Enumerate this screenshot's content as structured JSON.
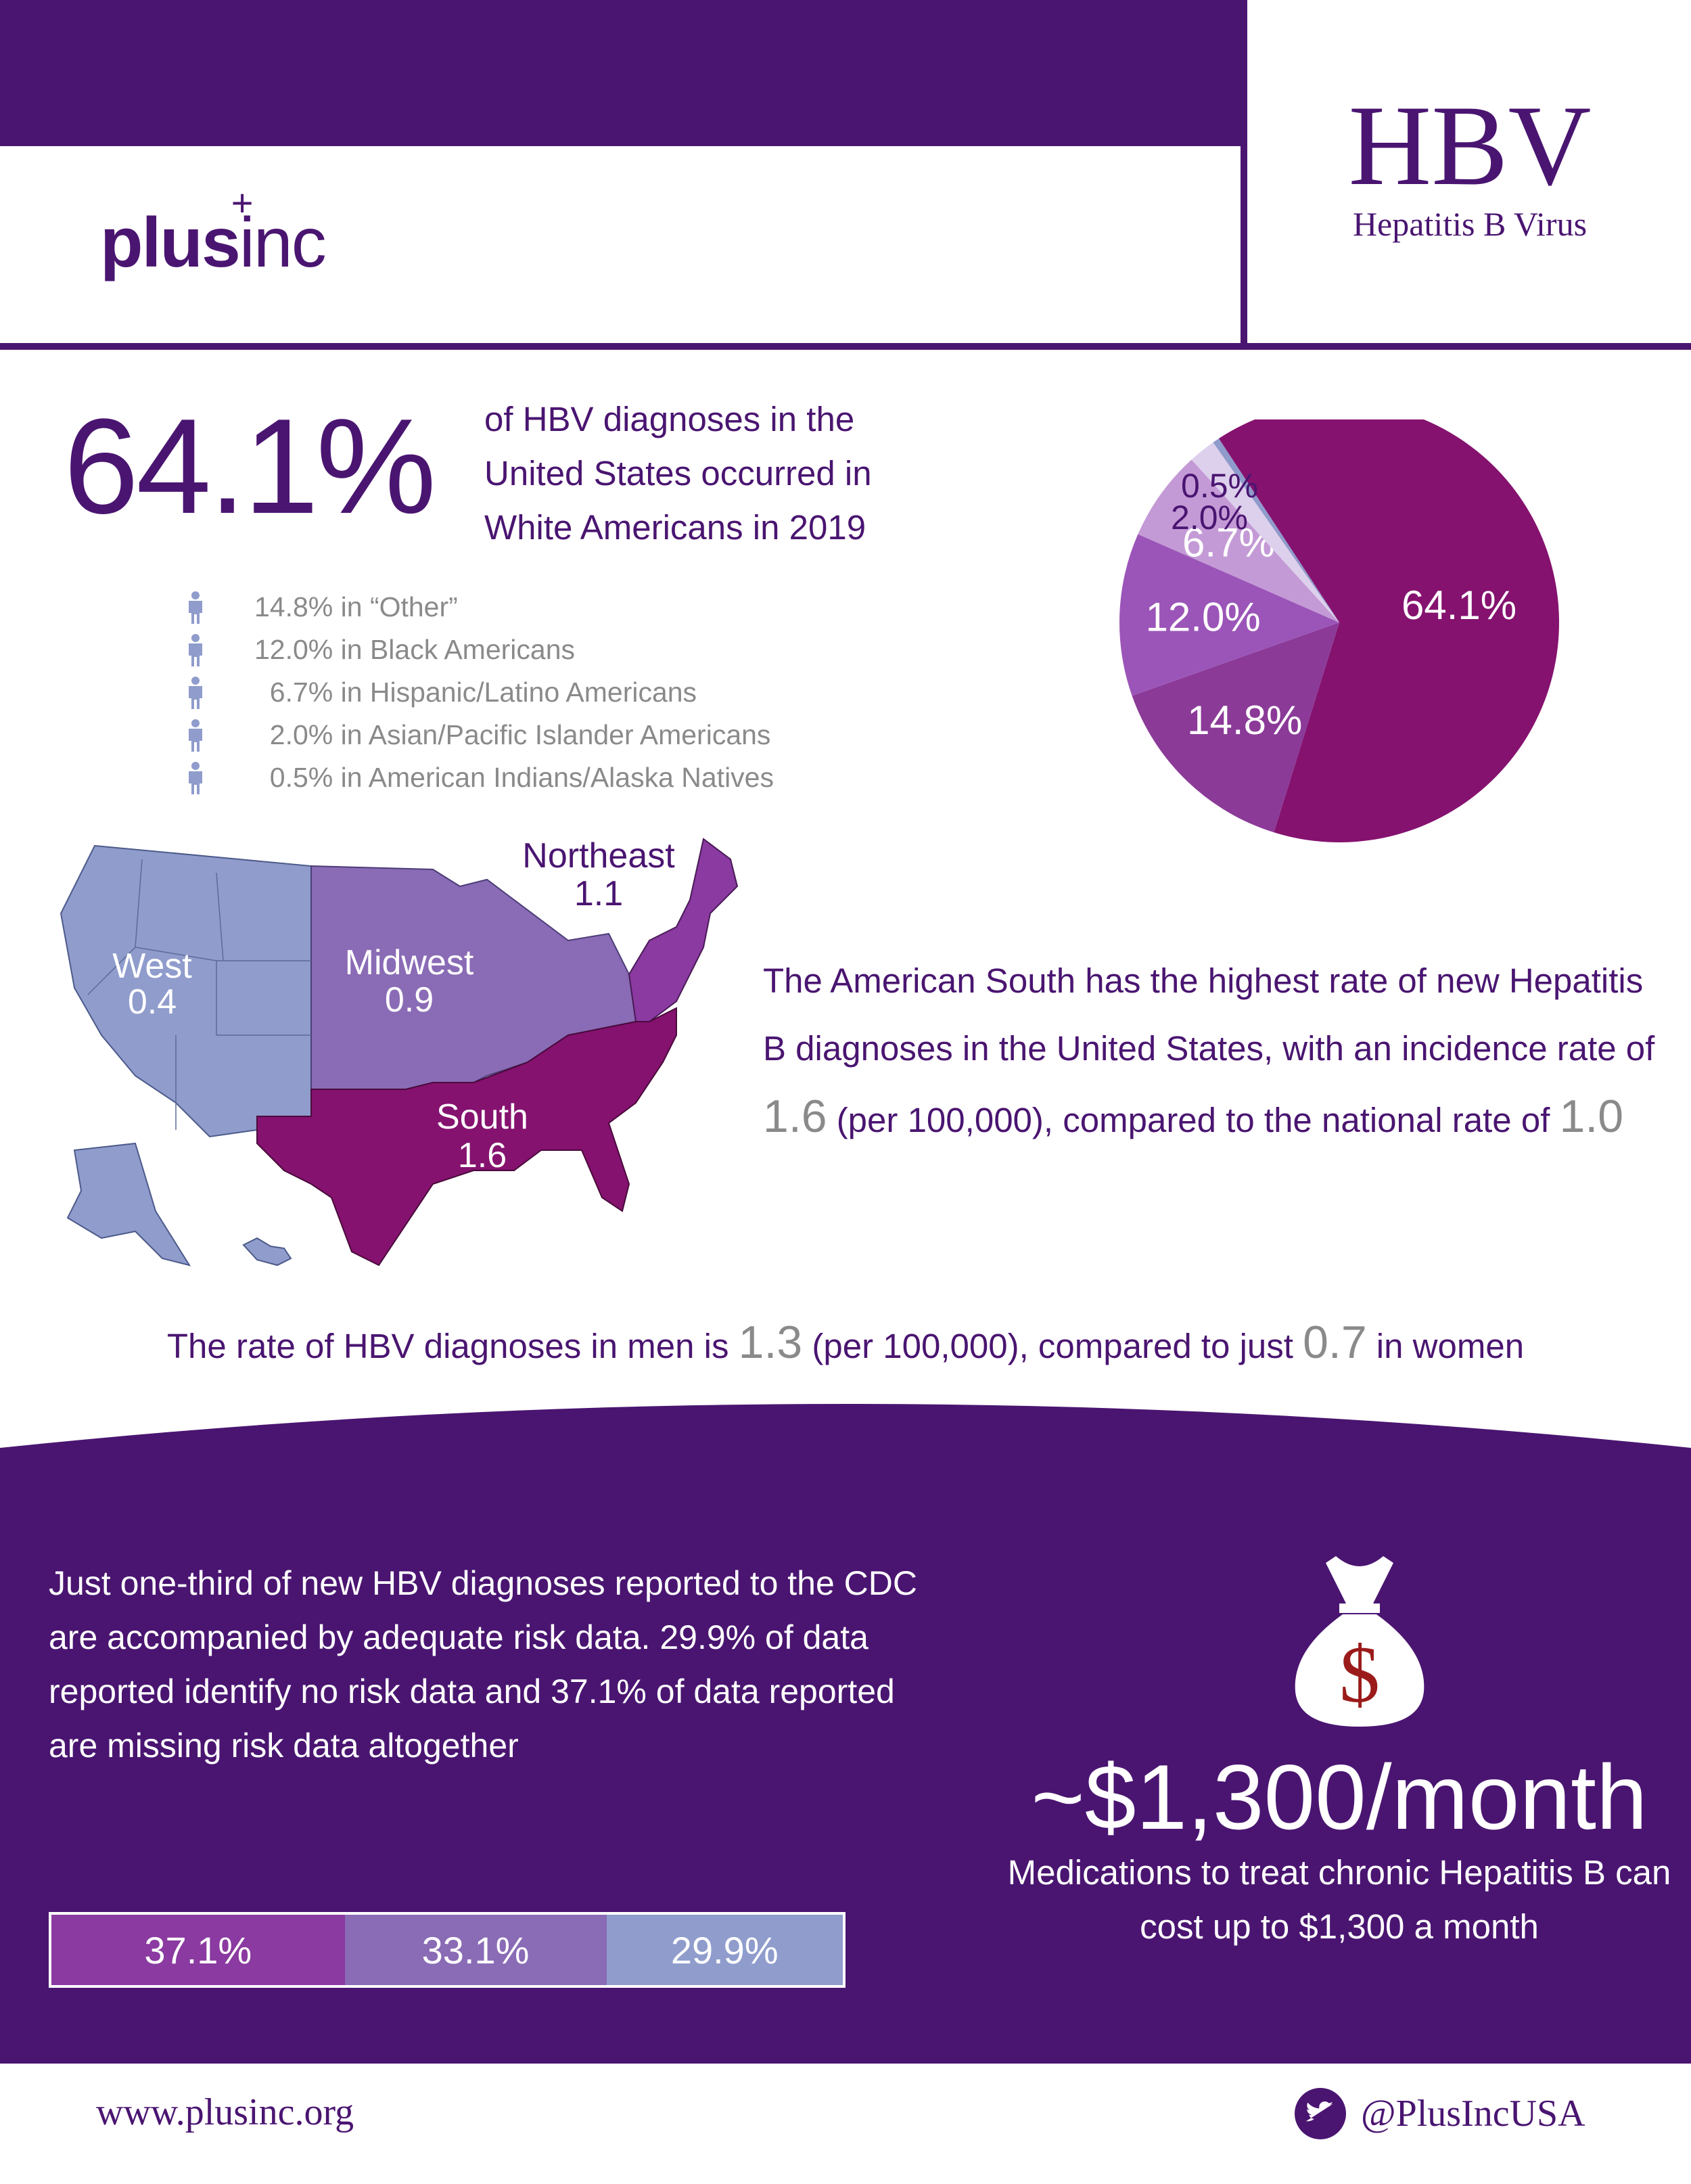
{
  "header": {
    "logo_main": "plus",
    "logo_suffix": "inc",
    "logo_plus": "+",
    "title": "HBV",
    "subtitle": "Hepatitis B Virus"
  },
  "headline": {
    "percent": "64.1%",
    "description": "of HBV diagnoses in the United States occurred in White Americans in 2019"
  },
  "breakdown": [
    {
      "icon": "person-icon",
      "text": "14.8% in “Other”"
    },
    {
      "icon": "person-icon",
      "text": "12.0% in Black Americans"
    },
    {
      "icon": "person-icon",
      "text": "  6.7% in Hispanic/Latino Americans"
    },
    {
      "icon": "person-icon",
      "text": "  2.0% in Asian/Pacific Islander Americans"
    },
    {
      "icon": "person-icon",
      "text": "  0.5% in American Indians/Alaska Natives"
    }
  ],
  "chart_data": {
    "type": "pie",
    "title": "",
    "labels": [
      "White Americans",
      "Other",
      "Black Americans",
      "Hispanic/Latino Americans",
      "Asian/Pacific Islander Americans",
      "American Indians/Alaska Natives"
    ],
    "values": [
      64.1,
      14.8,
      12.0,
      6.7,
      2.0,
      0.5
    ],
    "value_labels": [
      "64.1%",
      "14.8%",
      "12.0%",
      "6.7%",
      "2.0%",
      "0.5%"
    ],
    "colors": [
      "#85126f",
      "#8b3a98",
      "#9b55b8",
      "#c49ad6",
      "#ddd0ec",
      "#8f9bcb"
    ]
  },
  "map": {
    "regions": [
      {
        "name": "West",
        "rate": "0.4",
        "color": "#8f9ccc"
      },
      {
        "name": "Midwest",
        "rate": "0.9",
        "color": "#8a6bb5"
      },
      {
        "name": "Northeast",
        "rate": "1.1",
        "color": "#8a3aa0"
      },
      {
        "name": "South",
        "rate": "1.6",
        "color": "#85126f"
      }
    ]
  },
  "south_text": {
    "part1": "The American South has the highest rate of new Hepatitis B diagnoses in the United States, with an incidence rate of ",
    "rate": "1.6",
    "part2": " (per 100,000), compared to the national rate of ",
    "national": "1.0"
  },
  "gender_text": {
    "part1": "The rate of HBV diagnoses in men is ",
    "men": "1.3",
    "part2": " (per 100,000), compared to just ",
    "women": "0.7",
    "part3": " in women"
  },
  "risk": {
    "text": "Just one-third of new HBV diagnoses reported to the CDC are accompanied by adequate risk data. 29.9% of data reported identify no risk data and 37.1% of data reported are missing risk data altogether",
    "bar": [
      {
        "label": "37.1%",
        "value": 37.1,
        "color": "#8a3aa0"
      },
      {
        "label": "33.1%",
        "value": 33.1,
        "color": "#8a6bb5"
      },
      {
        "label": "29.9%",
        "value": 29.9,
        "color": "#8f9ccc"
      }
    ]
  },
  "cost": {
    "icon": "money-bag-icon",
    "currency_symbol": "$",
    "price": "~$1,300/month",
    "description": "Medications to treat chronic Hepatitis B can cost up to $1,300 a month"
  },
  "footer": {
    "url": "www.plusinc.org",
    "twitter": "@PlusIncUSA"
  },
  "colors": {
    "brand": "#4a1571",
    "text_gray": "#8a8a8a"
  }
}
